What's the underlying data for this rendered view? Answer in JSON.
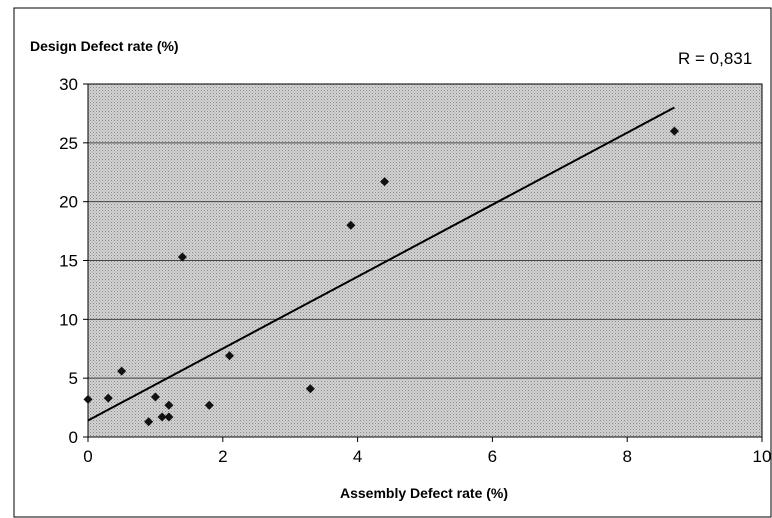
{
  "chart_data": {
    "type": "scatter",
    "title": "",
    "xlabel": "Assembly Defect rate (%)",
    "ylabel": "Design Defect rate (%)",
    "annotation": "R = 0,831",
    "xlim": [
      0,
      10
    ],
    "ylim": [
      0,
      30
    ],
    "x_ticks": [
      0,
      2,
      4,
      6,
      8,
      10
    ],
    "y_ticks": [
      0,
      5,
      10,
      15,
      20,
      25,
      30
    ],
    "grid": "horizontal",
    "legend": "none",
    "points": [
      {
        "x": 0.0,
        "y": 3.2
      },
      {
        "x": 0.3,
        "y": 3.3
      },
      {
        "x": 0.5,
        "y": 5.6
      },
      {
        "x": 0.9,
        "y": 1.3
      },
      {
        "x": 1.0,
        "y": 3.4
      },
      {
        "x": 1.1,
        "y": 1.7
      },
      {
        "x": 1.2,
        "y": 1.7
      },
      {
        "x": 1.2,
        "y": 2.7
      },
      {
        "x": 1.4,
        "y": 15.3
      },
      {
        "x": 1.8,
        "y": 2.7
      },
      {
        "x": 2.1,
        "y": 6.9
      },
      {
        "x": 3.3,
        "y": 4.1
      },
      {
        "x": 3.9,
        "y": 18.0
      },
      {
        "x": 4.4,
        "y": 21.7
      },
      {
        "x": 8.7,
        "y": 26.0
      }
    ],
    "trendline": {
      "x": [
        0,
        8.7
      ],
      "y": [
        1.4,
        28.0
      ]
    },
    "colors": {
      "plot_background": "#c8c8c8",
      "gridline": "#444444",
      "marker": "#111111",
      "trendline": "#000000",
      "border": "#000000"
    }
  }
}
